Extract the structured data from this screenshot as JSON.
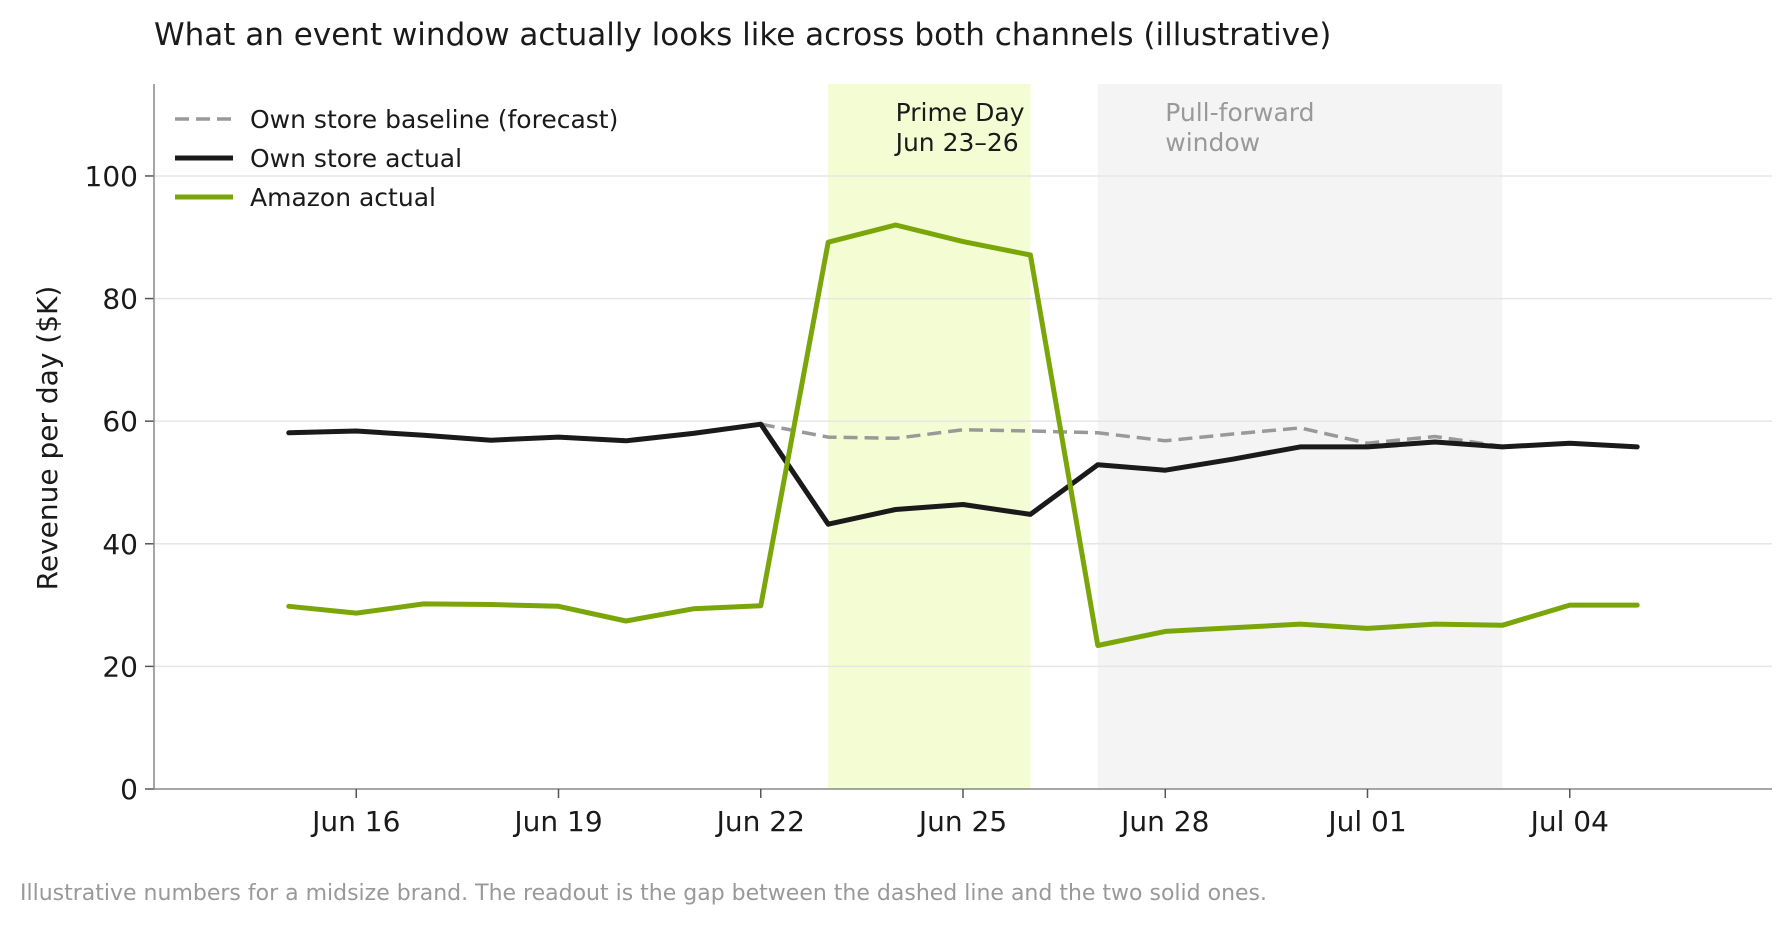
{
  "chart_data": {
    "type": "line",
    "title": "What an event window actually looks like across both channels (illustrative)",
    "ylabel": "Revenue per day ($K)",
    "xlabel": "",
    "ylim": [
      0,
      115
    ],
    "yticks": [
      0,
      20,
      40,
      60,
      80,
      100
    ],
    "grid": "horizontal",
    "legend_position": "top-left",
    "x_dates": [
      "2025-06-15",
      "2025-06-16",
      "2025-06-17",
      "2025-06-18",
      "2025-06-19",
      "2025-06-20",
      "2025-06-21",
      "2025-06-22",
      "2025-06-23",
      "2025-06-24",
      "2025-06-25",
      "2025-06-26",
      "2025-06-27",
      "2025-06-28",
      "2025-06-29",
      "2025-06-30",
      "2025-07-01",
      "2025-07-02",
      "2025-07-03",
      "2025-07-04",
      "2025-07-05"
    ],
    "xlim": [
      "2025-06-13",
      "2025-07-07"
    ],
    "xticks": [
      {
        "date": "2025-06-16",
        "label": "Jun 16"
      },
      {
        "date": "2025-06-19",
        "label": "Jun 19"
      },
      {
        "date": "2025-06-22",
        "label": "Jun 22"
      },
      {
        "date": "2025-06-25",
        "label": "Jun 25"
      },
      {
        "date": "2025-06-28",
        "label": "Jun 28"
      },
      {
        "date": "2025-07-01",
        "label": "Jul 01"
      },
      {
        "date": "2025-07-04",
        "label": "Jul 04"
      }
    ],
    "series": [
      {
        "name": "Own store baseline (forecast)",
        "color": "#999999",
        "style": "dashed",
        "start_date": "2025-06-22",
        "values": [
          59.5,
          57.4,
          57.2,
          58.6,
          58.4,
          58.1,
          56.8,
          57.9,
          58.9,
          56.4,
          57.5,
          55.9
        ]
      },
      {
        "name": "Own store actual",
        "color": "#1a1a1a",
        "style": "solid",
        "start_date": "2025-06-15",
        "values": [
          58.1,
          58.4,
          57.7,
          56.9,
          57.4,
          56.8,
          58.0,
          59.5,
          43.2,
          45.6,
          46.4,
          44.8,
          52.9,
          52.0,
          53.8,
          55.8,
          55.8,
          56.6,
          55.8,
          56.4,
          55.8
        ]
      },
      {
        "name": "Amazon actual",
        "color": "#7ba60a",
        "style": "solid",
        "start_date": "2025-06-15",
        "values": [
          29.8,
          28.7,
          30.2,
          30.1,
          29.8,
          27.4,
          29.4,
          29.9,
          89.2,
          92.0,
          89.3,
          87.1,
          23.4,
          25.7,
          26.3,
          26.9,
          26.2,
          26.9,
          26.7,
          30.0,
          30.0
        ]
      }
    ],
    "shaded_regions": [
      {
        "label_lines": [
          "Prime Day",
          "Jun 23–26"
        ],
        "start": "2025-06-23",
        "end": "2025-06-26",
        "color": "#f4fcd3",
        "text_color": "#1a1a1a"
      },
      {
        "label_lines": [
          "Pull-forward",
          "window"
        ],
        "start": "2025-06-27",
        "end": "2025-07-03",
        "color": "#f4f4f4",
        "text_color": "#999999"
      }
    ],
    "footnote": "Illustrative numbers for a midsize brand. The readout is the gap between the dashed line and the two solid ones."
  }
}
